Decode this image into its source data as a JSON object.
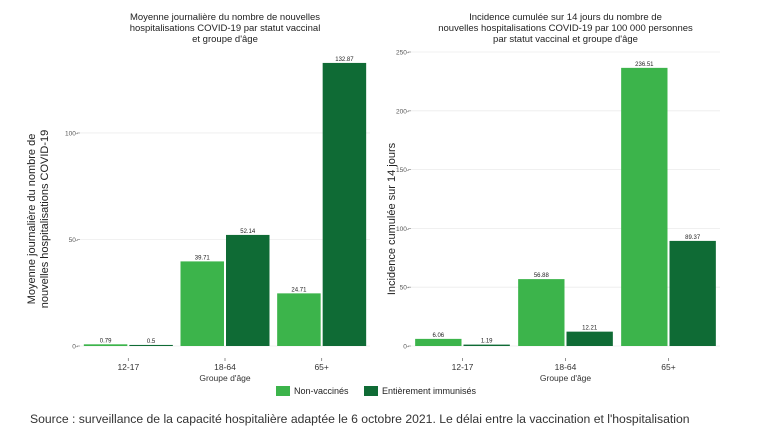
{
  "chart_data": [
    {
      "type": "bar",
      "title": [
        "Moyenne journalière du nombre de nouvelles",
        "hospitalisations COVID-19 par statut vaccinal",
        "et groupe d'âge"
      ],
      "ylabel": [
        "Moyenne journalière du nombre de",
        "nouvelles hospitalisations COVID-19"
      ],
      "xlabel": "Groupe d'âge",
      "categories": [
        "12-17",
        "18-64",
        "65+"
      ],
      "ylim": [
        0,
        138
      ],
      "yticks": [
        0,
        50,
        100
      ],
      "grid": true,
      "series": [
        {
          "name": "Non-vaccinés",
          "values": [
            0.79,
            39.71,
            24.71
          ],
          "labels": [
            "0.79",
            "39.71",
            "24.71"
          ]
        },
        {
          "name": "Entièrement immunisés",
          "values": [
            0.5,
            52.14,
            132.87
          ],
          "labels": [
            "0.5",
            "52.14",
            "132.87"
          ]
        }
      ]
    },
    {
      "type": "bar",
      "title": [
        "Incidence cumulée sur 14 jours du nombre de",
        "nouvelles hospitalisations COVID-19 par 100 000 personnes",
        "par statut vaccinal et groupe d'âge"
      ],
      "ylabel": [
        "Incidence cumulée sur 14 jours"
      ],
      "xlabel": "Groupe d'âge",
      "categories": [
        "12-17",
        "18-64",
        "65+"
      ],
      "ylim": [
        0,
        250
      ],
      "yticks": [
        0,
        50,
        100,
        150,
        200,
        250
      ],
      "grid": true,
      "series": [
        {
          "name": "Non-vaccinés",
          "values": [
            6.06,
            56.88,
            236.51
          ],
          "labels": [
            "6.06",
            "56.88",
            "236.51"
          ]
        },
        {
          "name": "Entièrement immunisés",
          "values": [
            1.19,
            12.21,
            89.37
          ],
          "labels": [
            "1.19",
            "12.21",
            "89.37"
          ]
        }
      ]
    }
  ],
  "legend": {
    "position": "bottom",
    "items": [
      {
        "label": "Non-vaccinés",
        "color": "#3cb44b"
      },
      {
        "label": "Entièrement immunisés",
        "color": "#0f6b35"
      }
    ]
  },
  "source_text": "Source : surveillance de la capacité hospitalière adaptée le 6 octobre 2021. Le délai entre la vaccination et l'hospitalisation"
}
